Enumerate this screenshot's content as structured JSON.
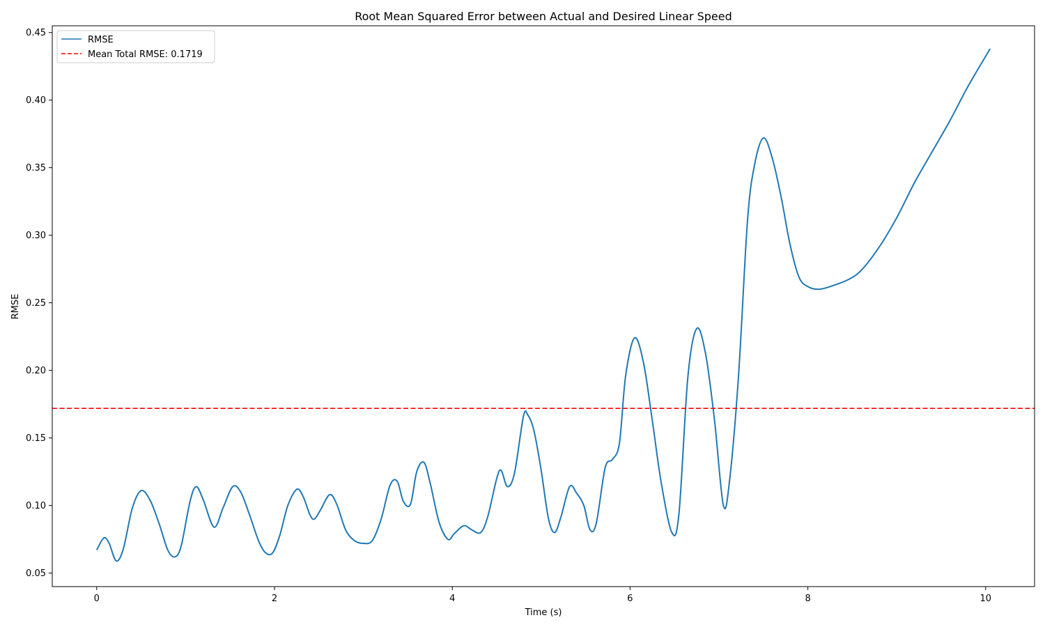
{
  "chart_data": {
    "type": "line",
    "title": "Root Mean Squared Error between Actual and Desired Linear Speed",
    "xlabel": "Time (s)",
    "ylabel": "RMSE",
    "xlim": [
      -0.5,
      10.55
    ],
    "ylim": [
      0.04,
      0.455
    ],
    "xticks": [
      0,
      2,
      4,
      6,
      8,
      10
    ],
    "xtick_labels": [
      "0",
      "2",
      "4",
      "6",
      "8",
      "10"
    ],
    "yticks": [
      0.05,
      0.1,
      0.15,
      0.2,
      0.25,
      0.3,
      0.35,
      0.4,
      0.45
    ],
    "ytick_labels": [
      "0.05",
      "0.10",
      "0.15",
      "0.20",
      "0.25",
      "0.30",
      "0.35",
      "0.40",
      "0.45"
    ],
    "grid": false,
    "legend_position": "upper-left",
    "series": [
      {
        "name": "RMSE",
        "color": "#1f77b4",
        "style": "solid",
        "x": [
          0.0,
          0.08,
          0.14,
          0.22,
          0.3,
          0.4,
          0.5,
          0.6,
          0.7,
          0.8,
          0.88,
          0.95,
          1.05,
          1.12,
          1.2,
          1.32,
          1.42,
          1.53,
          1.62,
          1.72,
          1.82,
          1.9,
          1.98,
          2.06,
          2.15,
          2.25,
          2.32,
          2.4,
          2.45,
          2.52,
          2.62,
          2.7,
          2.8,
          2.9,
          3.0,
          3.1,
          3.2,
          3.3,
          3.38,
          3.45,
          3.53,
          3.6,
          3.68,
          3.75,
          3.85,
          3.95,
          4.02,
          4.1,
          4.15,
          4.22,
          4.32,
          4.4,
          4.5,
          4.55,
          4.62,
          4.7,
          4.8,
          4.85,
          4.92,
          5.0,
          5.08,
          5.15,
          5.22,
          5.32,
          5.4,
          5.48,
          5.55,
          5.62,
          5.72,
          5.8,
          5.88,
          5.95,
          6.05,
          6.15,
          6.25,
          6.35,
          6.47,
          6.55,
          6.65,
          6.75,
          6.85,
          6.95,
          7.05,
          7.12,
          7.22,
          7.32,
          7.4,
          7.5,
          7.6,
          7.7,
          7.8,
          7.9,
          8.0,
          8.12,
          8.25,
          8.45,
          8.6,
          8.8,
          9.0,
          9.2,
          9.4,
          9.6,
          9.8,
          10.05
        ],
        "y": [
          0.067,
          0.076,
          0.072,
          0.059,
          0.068,
          0.098,
          0.111,
          0.104,
          0.087,
          0.067,
          0.062,
          0.07,
          0.103,
          0.114,
          0.104,
          0.084,
          0.098,
          0.114,
          0.11,
          0.093,
          0.074,
          0.065,
          0.065,
          0.078,
          0.1,
          0.112,
          0.107,
          0.093,
          0.09,
          0.097,
          0.108,
          0.101,
          0.082,
          0.074,
          0.072,
          0.074,
          0.09,
          0.115,
          0.118,
          0.103,
          0.101,
          0.125,
          0.132,
          0.117,
          0.088,
          0.075,
          0.079,
          0.084,
          0.085,
          0.082,
          0.08,
          0.092,
          0.12,
          0.126,
          0.114,
          0.124,
          0.166,
          0.167,
          0.155,
          0.126,
          0.091,
          0.08,
          0.091,
          0.114,
          0.109,
          0.1,
          0.082,
          0.087,
          0.128,
          0.134,
          0.146,
          0.196,
          0.224,
          0.206,
          0.163,
          0.117,
          0.08,
          0.094,
          0.195,
          0.231,
          0.212,
          0.163,
          0.1,
          0.119,
          0.196,
          0.31,
          0.352,
          0.372,
          0.357,
          0.328,
          0.293,
          0.269,
          0.262,
          0.26,
          0.262,
          0.267,
          0.274,
          0.291,
          0.313,
          0.339,
          0.362,
          0.385,
          0.41,
          0.438
        ]
      },
      {
        "name": "Mean Total RMSE: 0.1719",
        "color": "#ff0000",
        "style": "dashed",
        "value": 0.1719
      }
    ]
  }
}
